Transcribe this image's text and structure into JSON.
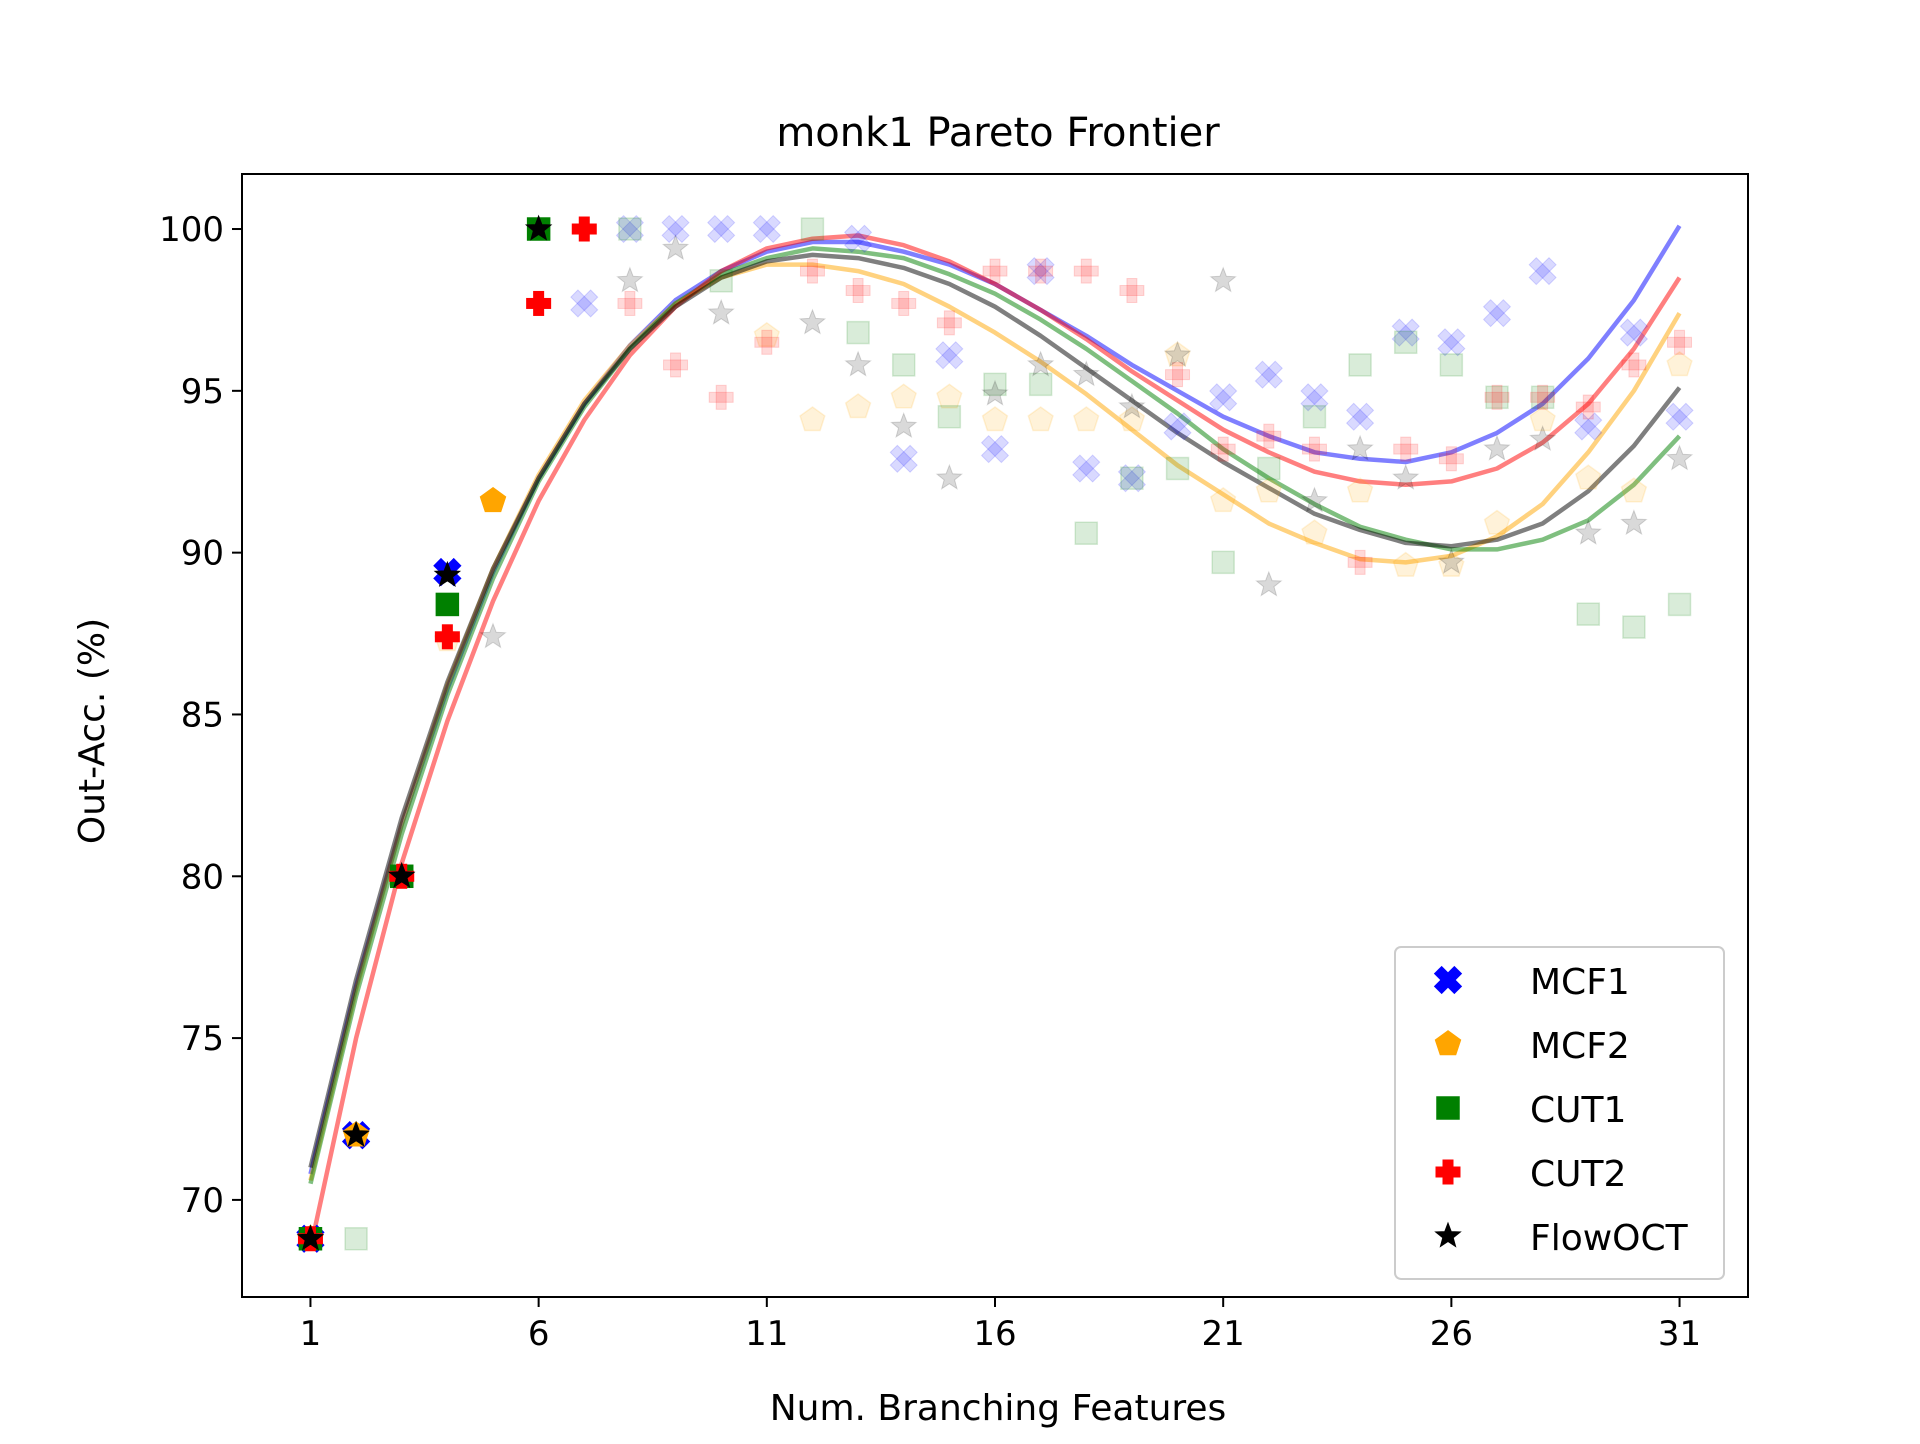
{
  "chart_data": {
    "type": "scatter",
    "title": "monk1 Pareto Frontier",
    "xlabel": "Num. Branching Features",
    "ylabel": "Out-Acc. (%)",
    "xlim": [
      -0.5,
      32.5
    ],
    "ylim": [
      67,
      101.7
    ],
    "xticks": [
      1,
      6,
      11,
      16,
      21,
      26,
      31
    ],
    "yticks": [
      70,
      75,
      80,
      85,
      90,
      95,
      100
    ],
    "grid": false,
    "legend_position": "lower-right",
    "series": [
      {
        "name": "MCF1",
        "marker": "x",
        "color": "#0000ff",
        "points": [
          [
            1,
            68.8
          ],
          [
            2,
            72.0
          ],
          [
            4,
            89.4
          ]
        ],
        "faded_points": [
          [
            7,
            97.7
          ],
          [
            8,
            100
          ],
          [
            9,
            100
          ],
          [
            10,
            100
          ],
          [
            11,
            100
          ],
          [
            13,
            99.7
          ],
          [
            14,
            92.9
          ],
          [
            15,
            96.1
          ],
          [
            16,
            93.2
          ],
          [
            17,
            98.7
          ],
          [
            18,
            92.6
          ],
          [
            19,
            92.3
          ],
          [
            20,
            93.9
          ],
          [
            21,
            94.8
          ],
          [
            22,
            95.5
          ],
          [
            23,
            94.8
          ],
          [
            24,
            94.2
          ],
          [
            25,
            96.8
          ],
          [
            26,
            96.5
          ],
          [
            27,
            97.4
          ],
          [
            28,
            98.7
          ],
          [
            29,
            93.9
          ],
          [
            30,
            96.8
          ],
          [
            31,
            94.2
          ]
        ],
        "fit": [
          [
            1,
            70.8
          ],
          [
            2,
            76.6
          ],
          [
            3,
            81.6
          ],
          [
            4,
            85.8
          ],
          [
            5,
            89.4
          ],
          [
            6,
            92.3
          ],
          [
            7,
            94.6
          ],
          [
            8,
            96.4
          ],
          [
            9,
            97.8
          ],
          [
            10,
            98.7
          ],
          [
            11,
            99.3
          ],
          [
            12,
            99.6
          ],
          [
            13,
            99.6
          ],
          [
            14,
            99.3
          ],
          [
            15,
            98.9
          ],
          [
            16,
            98.3
          ],
          [
            17,
            97.5
          ],
          [
            18,
            96.7
          ],
          [
            19,
            95.8
          ],
          [
            20,
            95.0
          ],
          [
            21,
            94.2
          ],
          [
            22,
            93.6
          ],
          [
            23,
            93.1
          ],
          [
            24,
            92.9
          ],
          [
            25,
            92.8
          ],
          [
            26,
            93.1
          ],
          [
            27,
            93.7
          ],
          [
            28,
            94.6
          ],
          [
            29,
            96.0
          ],
          [
            30,
            97.8
          ],
          [
            31,
            100.1
          ]
        ]
      },
      {
        "name": "MCF2",
        "marker": "pentagon",
        "color": "#ffa500",
        "points": [
          [
            1,
            68.8
          ],
          [
            2,
            72.0
          ],
          [
            5,
            91.6
          ]
        ],
        "faded_points": [
          [
            4,
            87.3
          ],
          [
            11,
            96.7
          ],
          [
            12,
            94.1
          ],
          [
            13,
            94.5
          ],
          [
            14,
            94.8
          ],
          [
            15,
            94.8
          ],
          [
            16,
            94.1
          ],
          [
            17,
            94.1
          ],
          [
            18,
            94.1
          ],
          [
            19,
            94.1
          ],
          [
            20,
            96.1
          ],
          [
            21,
            91.6
          ],
          [
            22,
            91.9
          ],
          [
            23,
            90.6
          ],
          [
            24,
            91.9
          ],
          [
            25,
            89.6
          ],
          [
            26,
            89.6
          ],
          [
            27,
            90.9
          ],
          [
            28,
            94.1
          ],
          [
            29,
            92.3
          ],
          [
            30,
            91.9
          ],
          [
            31,
            95.8
          ]
        ],
        "fit": [
          [
            1,
            70.6
          ],
          [
            2,
            76.5
          ],
          [
            3,
            81.6
          ],
          [
            4,
            85.9
          ],
          [
            5,
            89.5
          ],
          [
            6,
            92.4
          ],
          [
            7,
            94.7
          ],
          [
            8,
            96.4
          ],
          [
            9,
            97.7
          ],
          [
            10,
            98.5
          ],
          [
            11,
            98.9
          ],
          [
            12,
            98.9
          ],
          [
            13,
            98.7
          ],
          [
            14,
            98.3
          ],
          [
            15,
            97.6
          ],
          [
            16,
            96.8
          ],
          [
            17,
            95.9
          ],
          [
            18,
            94.9
          ],
          [
            19,
            93.8
          ],
          [
            20,
            92.7
          ],
          [
            21,
            91.8
          ],
          [
            22,
            90.9
          ],
          [
            23,
            90.3
          ],
          [
            24,
            89.8
          ],
          [
            25,
            89.7
          ],
          [
            26,
            89.9
          ],
          [
            27,
            90.5
          ],
          [
            28,
            91.5
          ],
          [
            29,
            93.1
          ],
          [
            30,
            95.0
          ],
          [
            31,
            97.4
          ]
        ]
      },
      {
        "name": "CUT1",
        "marker": "square",
        "color": "#008000",
        "points": [
          [
            1,
            68.8
          ],
          [
            3,
            80.0
          ],
          [
            4,
            88.4
          ],
          [
            6,
            100
          ]
        ],
        "faded_points": [
          [
            2,
            68.8
          ],
          [
            8,
            100
          ],
          [
            10,
            98.4
          ],
          [
            12,
            100
          ],
          [
            13,
            96.8
          ],
          [
            14,
            95.8
          ],
          [
            15,
            94.2
          ],
          [
            16,
            95.2
          ],
          [
            17,
            95.2
          ],
          [
            18,
            90.6
          ],
          [
            19,
            92.3
          ],
          [
            20,
            92.6
          ],
          [
            21,
            89.7
          ],
          [
            22,
            92.6
          ],
          [
            23,
            94.2
          ],
          [
            24,
            95.8
          ],
          [
            25,
            96.5
          ],
          [
            26,
            95.8
          ],
          [
            27,
            94.8
          ],
          [
            28,
            94.8
          ],
          [
            29,
            88.1
          ],
          [
            30,
            87.7
          ],
          [
            31,
            88.4
          ]
        ],
        "fit": [
          [
            1,
            70.5
          ],
          [
            2,
            76.3
          ],
          [
            3,
            81.3
          ],
          [
            4,
            85.6
          ],
          [
            5,
            89.2
          ],
          [
            6,
            92.2
          ],
          [
            7,
            94.5
          ],
          [
            8,
            96.3
          ],
          [
            9,
            97.7
          ],
          [
            10,
            98.6
          ],
          [
            11,
            99.1
          ],
          [
            12,
            99.4
          ],
          [
            13,
            99.3
          ],
          [
            14,
            99.1
          ],
          [
            15,
            98.6
          ],
          [
            16,
            98.0
          ],
          [
            17,
            97.2
          ],
          [
            18,
            96.3
          ],
          [
            19,
            95.3
          ],
          [
            20,
            94.3
          ],
          [
            21,
            93.2
          ],
          [
            22,
            92.3
          ],
          [
            23,
            91.5
          ],
          [
            24,
            90.8
          ],
          [
            25,
            90.4
          ],
          [
            26,
            90.1
          ],
          [
            27,
            90.1
          ],
          [
            28,
            90.4
          ],
          [
            29,
            91.0
          ],
          [
            30,
            92.1
          ],
          [
            31,
            93.6
          ]
        ]
      },
      {
        "name": "CUT2",
        "marker": "plus",
        "color": "#ff0000",
        "points": [
          [
            1,
            68.8
          ],
          [
            3,
            80.0
          ],
          [
            4,
            87.4
          ],
          [
            6,
            97.7
          ],
          [
            7,
            100
          ]
        ],
        "faded_points": [
          [
            8,
            97.7
          ],
          [
            9,
            95.8
          ],
          [
            10,
            94.8
          ],
          [
            11,
            96.5
          ],
          [
            12,
            98.7
          ],
          [
            13,
            98.1
          ],
          [
            14,
            97.7
          ],
          [
            15,
            97.1
          ],
          [
            16,
            98.7
          ],
          [
            17,
            98.7
          ],
          [
            18,
            98.7
          ],
          [
            19,
            98.1
          ],
          [
            20,
            95.5
          ],
          [
            21,
            93.2
          ],
          [
            22,
            93.6
          ],
          [
            23,
            93.2
          ],
          [
            24,
            89.7
          ],
          [
            25,
            93.2
          ],
          [
            26,
            92.9
          ],
          [
            27,
            94.8
          ],
          [
            28,
            94.8
          ],
          [
            29,
            94.5
          ],
          [
            30,
            95.8
          ],
          [
            31,
            96.5
          ]
        ],
        "fit": [
          [
            1,
            68.5
          ],
          [
            2,
            75.0
          ],
          [
            3,
            80.4
          ],
          [
            4,
            84.8
          ],
          [
            5,
            88.5
          ],
          [
            6,
            91.6
          ],
          [
            7,
            94.1
          ],
          [
            8,
            96.1
          ],
          [
            9,
            97.6
          ],
          [
            10,
            98.7
          ],
          [
            11,
            99.4
          ],
          [
            12,
            99.7
          ],
          [
            13,
            99.8
          ],
          [
            14,
            99.5
          ],
          [
            15,
            99.0
          ],
          [
            16,
            98.3
          ],
          [
            17,
            97.5
          ],
          [
            18,
            96.6
          ],
          [
            19,
            95.6
          ],
          [
            20,
            94.7
          ],
          [
            21,
            93.8
          ],
          [
            22,
            93.1
          ],
          [
            23,
            92.5
          ],
          [
            24,
            92.2
          ],
          [
            25,
            92.1
          ],
          [
            26,
            92.2
          ],
          [
            27,
            92.6
          ],
          [
            28,
            93.4
          ],
          [
            29,
            94.6
          ],
          [
            30,
            96.3
          ],
          [
            31,
            98.5
          ]
        ]
      },
      {
        "name": "FlowOCT",
        "marker": "star",
        "color": "#000000",
        "points": [
          [
            1,
            68.8
          ],
          [
            2,
            72.0
          ],
          [
            3,
            80.0
          ],
          [
            4,
            89.3
          ],
          [
            6,
            100
          ]
        ],
        "faded_points": [
          [
            5,
            87.4
          ],
          [
            8,
            98.4
          ],
          [
            9,
            99.4
          ],
          [
            10,
            97.4
          ],
          [
            12,
            97.1
          ],
          [
            13,
            95.8
          ],
          [
            14,
            93.9
          ],
          [
            15,
            92.3
          ],
          [
            16,
            94.9
          ],
          [
            17,
            95.8
          ],
          [
            18,
            95.5
          ],
          [
            19,
            94.5
          ],
          [
            20,
            96.1
          ],
          [
            21,
            98.4
          ],
          [
            22,
            89.0
          ],
          [
            23,
            91.6
          ],
          [
            24,
            93.2
          ],
          [
            25,
            92.3
          ],
          [
            26,
            89.7
          ],
          [
            27,
            93.2
          ],
          [
            28,
            93.5
          ],
          [
            29,
            90.6
          ],
          [
            30,
            90.9
          ],
          [
            31,
            92.9
          ]
        ],
        "fit": [
          [
            1,
            71.0
          ],
          [
            2,
            76.8
          ],
          [
            3,
            81.8
          ],
          [
            4,
            86.0
          ],
          [
            5,
            89.5
          ],
          [
            6,
            92.3
          ],
          [
            7,
            94.6
          ],
          [
            8,
            96.3
          ],
          [
            9,
            97.6
          ],
          [
            10,
            98.5
          ],
          [
            11,
            99.0
          ],
          [
            12,
            99.2
          ],
          [
            13,
            99.1
          ],
          [
            14,
            98.8
          ],
          [
            15,
            98.3
          ],
          [
            16,
            97.6
          ],
          [
            17,
            96.7
          ],
          [
            18,
            95.7
          ],
          [
            19,
            94.7
          ],
          [
            20,
            93.7
          ],
          [
            21,
            92.8
          ],
          [
            22,
            92.0
          ],
          [
            23,
            91.2
          ],
          [
            24,
            90.7
          ],
          [
            25,
            90.3
          ],
          [
            26,
            90.2
          ],
          [
            27,
            90.4
          ],
          [
            28,
            90.9
          ],
          [
            29,
            91.9
          ],
          [
            30,
            93.3
          ],
          [
            31,
            95.1
          ]
        ]
      }
    ]
  }
}
